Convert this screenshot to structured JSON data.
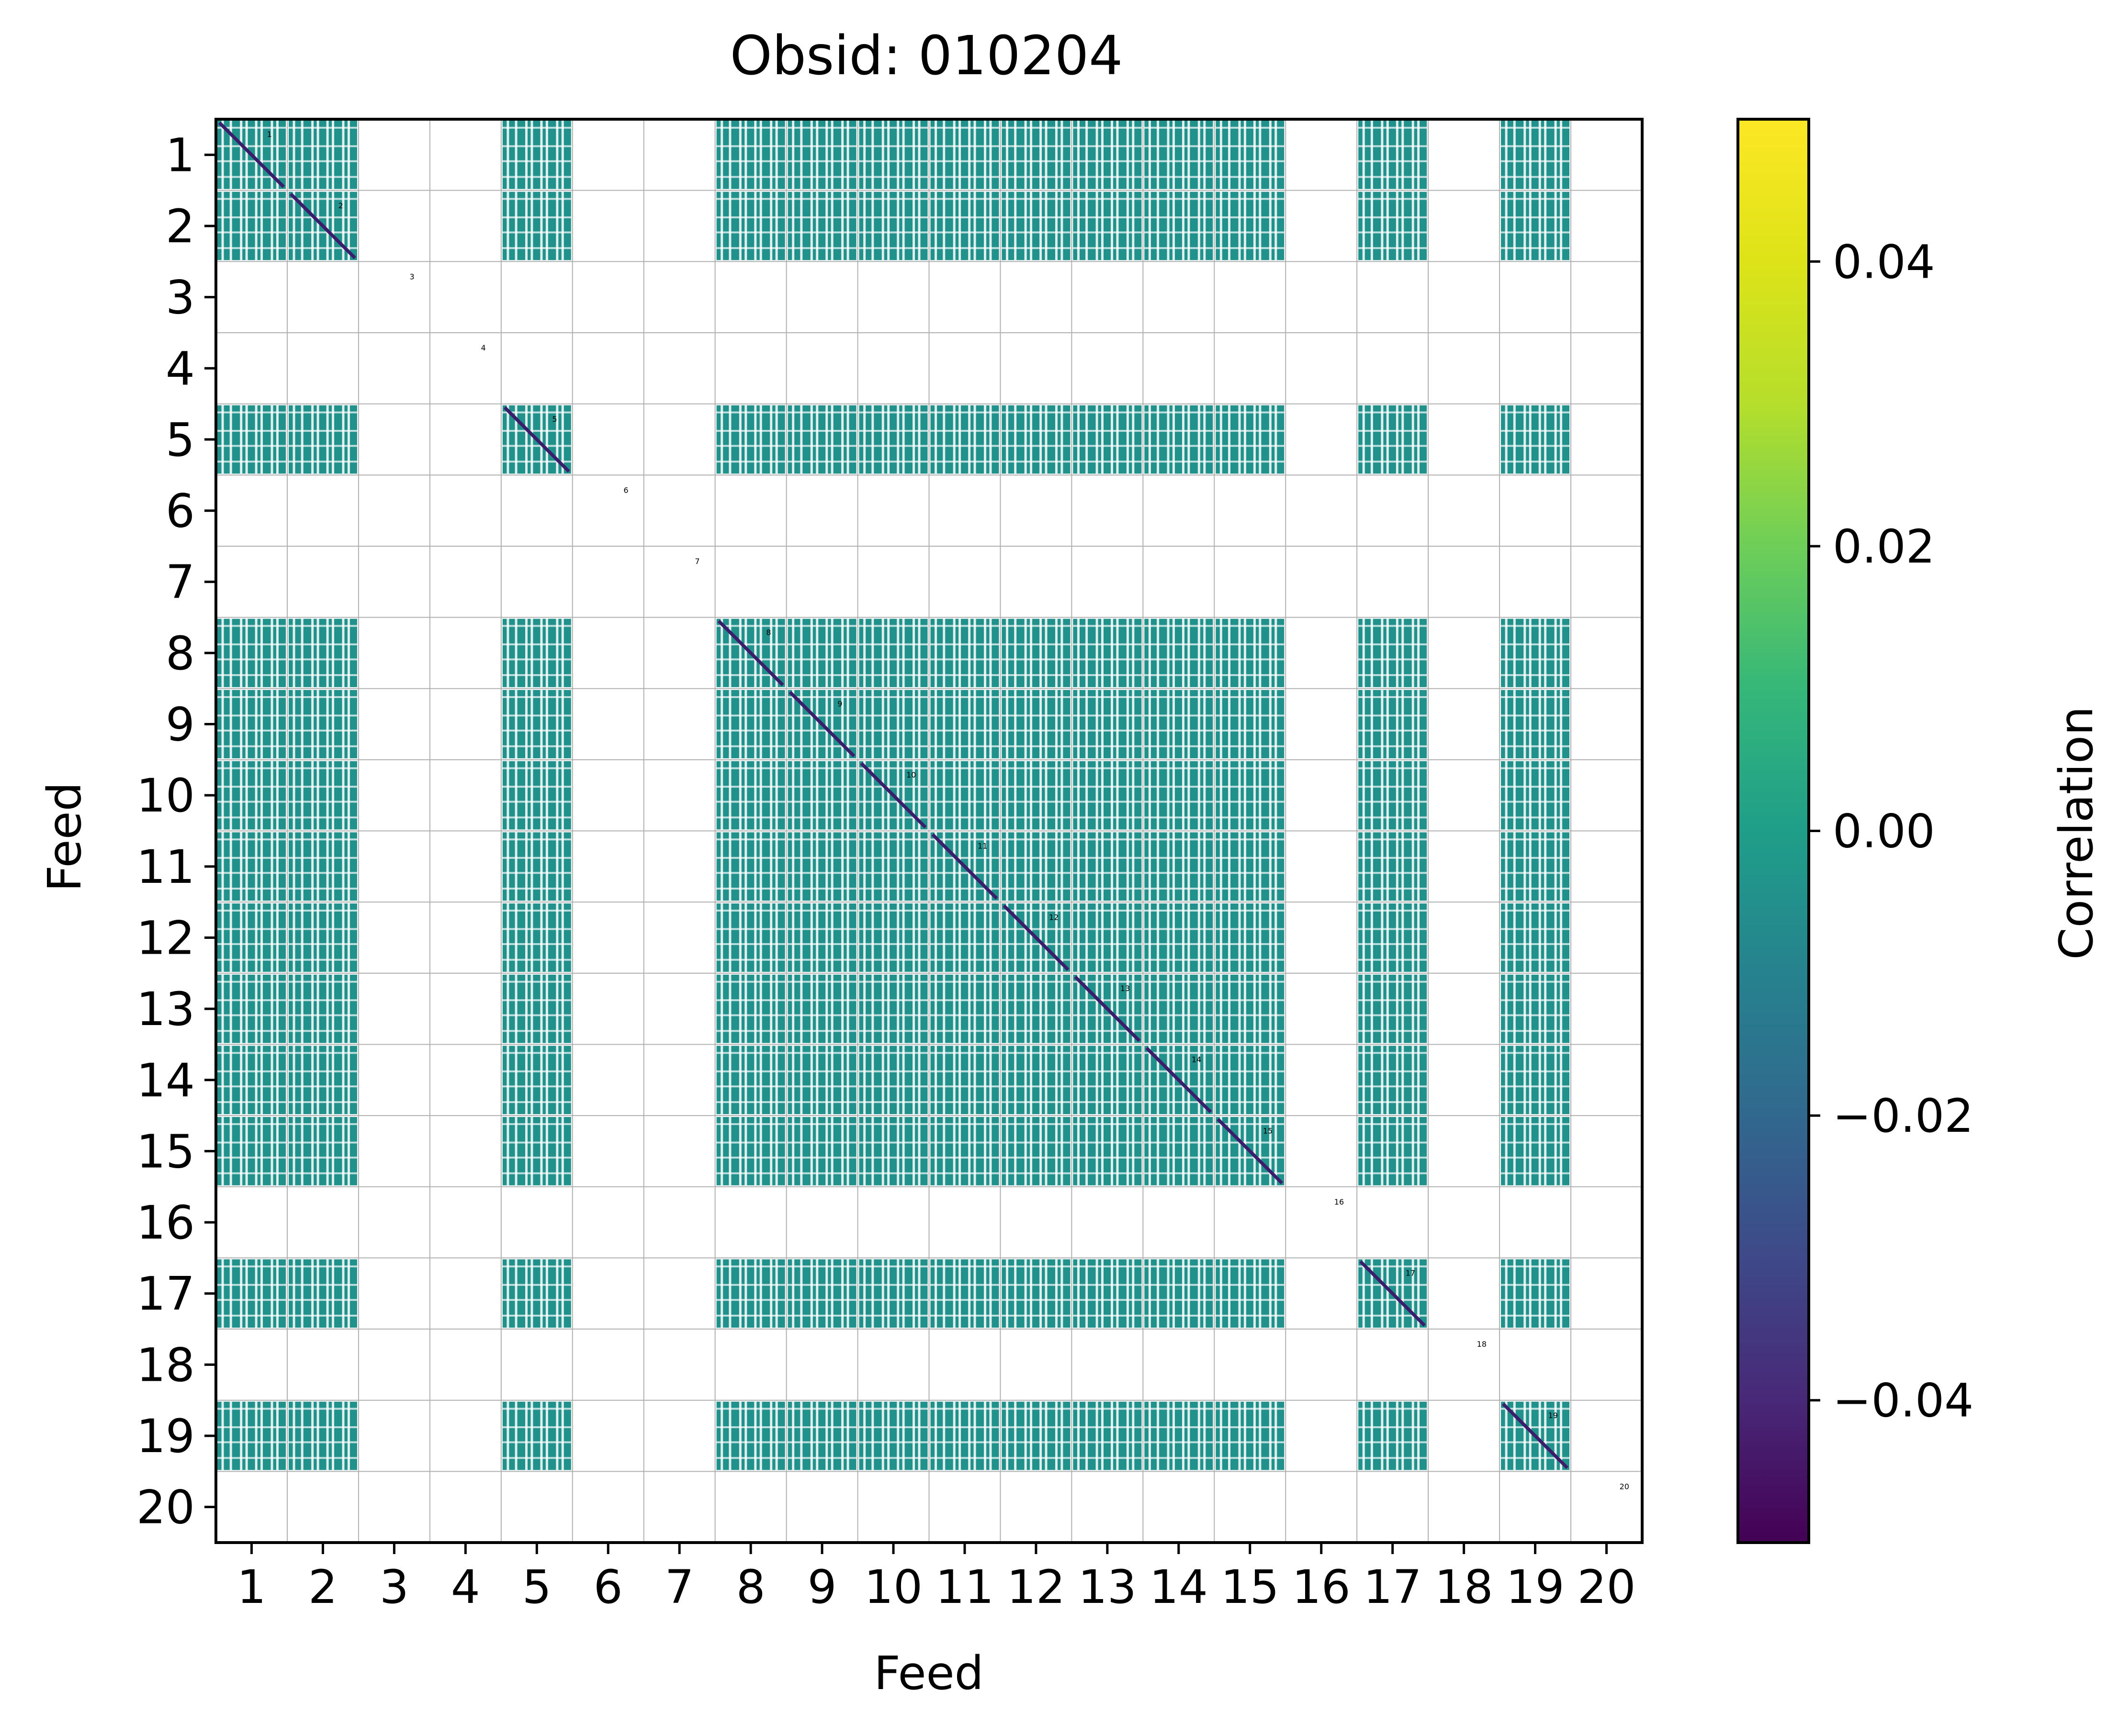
{
  "chart_data": {
    "type": "heatmap",
    "title": "Obsid: 010204",
    "xlabel": "Feed",
    "ylabel": "Feed",
    "x_ticks": [
      "1",
      "2",
      "3",
      "4",
      "5",
      "6",
      "7",
      "8",
      "9",
      "10",
      "11",
      "12",
      "13",
      "14",
      "15",
      "16",
      "17",
      "18",
      "19",
      "20"
    ],
    "y_ticks": [
      "1",
      "2",
      "3",
      "4",
      "5",
      "6",
      "7",
      "8",
      "9",
      "10",
      "11",
      "12",
      "13",
      "14",
      "15",
      "16",
      "17",
      "18",
      "19",
      "20"
    ],
    "colorbar": {
      "label": "Correlation",
      "range": [
        -0.05,
        0.05
      ],
      "ticks": [
        {
          "value": -0.04,
          "label": "−0.04"
        },
        {
          "value": -0.02,
          "label": "−0.02"
        },
        {
          "value": 0.0,
          "label": "0.00"
        },
        {
          "value": 0.02,
          "label": "0.02"
        },
        {
          "value": 0.04,
          "label": "0.04"
        }
      ],
      "colormap": "viridis"
    },
    "dominant_value": 0.0,
    "cell_color": "#21918c",
    "diagonal_color": "#3b1e6b",
    "active_feeds": [
      1,
      2,
      5,
      8,
      9,
      10,
      11,
      12,
      13,
      14,
      15,
      17,
      19
    ],
    "inactive_feeds": [
      3,
      4,
      6,
      7,
      16,
      18,
      20
    ],
    "feed_labels": [
      "1",
      "2",
      "3",
      "4",
      "5",
      "6",
      "7",
      "8",
      "9",
      "10",
      "11",
      "12",
      "13",
      "14",
      "15",
      "16",
      "17",
      "18",
      "19",
      "20"
    ],
    "grid": true
  }
}
